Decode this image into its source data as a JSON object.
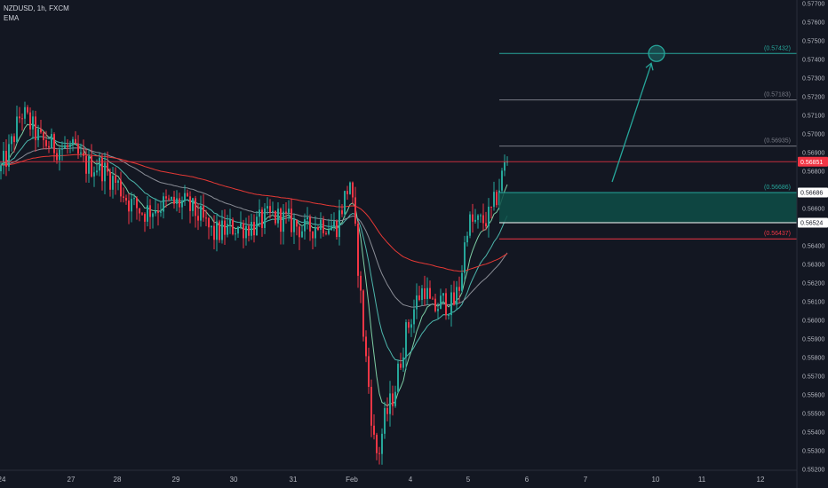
{
  "header": {
    "symbol_line": "NZDUSD, 1h, FXCM",
    "indicator_label": "EMA"
  },
  "chart_data": {
    "type": "candlestick",
    "symbol": "NZDUSD",
    "timeframe": "1h",
    "source": "FXCM",
    "ylim": [
      0.552,
      0.577
    ],
    "y_ticks": [
      0.552,
      0.553,
      0.554,
      0.555,
      0.556,
      0.557,
      0.558,
      0.559,
      0.56,
      0.561,
      0.562,
      0.563,
      0.564,
      0.565,
      0.566,
      0.567,
      0.568,
      0.569,
      0.57,
      0.571,
      0.572,
      0.573,
      0.574,
      0.575,
      0.576,
      0.577
    ],
    "x_tick_labels": [
      "24",
      "27",
      "28",
      "29",
      "30",
      "31",
      "Feb",
      "4",
      "5",
      "6",
      "7",
      "10",
      "11",
      "12"
    ],
    "current_price": "0.56851",
    "price_levels": [
      {
        "value": 0.57432,
        "label": "(0.57432)",
        "color": "#26a69a"
      },
      {
        "value": 0.57183,
        "label": "(0.57183)",
        "color": "#787b86"
      },
      {
        "value": 0.56935,
        "label": "(0.56935)",
        "color": "#787b86"
      },
      {
        "value": 0.56851,
        "label": "0.56851",
        "color": "#f23645"
      },
      {
        "value": 0.56686,
        "label": "(0.56686)",
        "color": "#26a69a"
      },
      {
        "value": 0.56437,
        "label": "(0.56437)",
        "color": "#f23645"
      }
    ],
    "zone": {
      "top": 0.56686,
      "bottom": 0.56524,
      "top_label": "0.56686",
      "bottom_label": "0.56524"
    },
    "target_marker": {
      "value": 0.57432
    },
    "ema_count": 4,
    "colors": {
      "up": "#26a69a",
      "down": "#f23645",
      "zone": "#0e4d47",
      "ema_red": "#e53935",
      "ema_green": "#7ecfa5",
      "ema_teal": "#4db6ac",
      "ema_gray": "#8a8d96"
    },
    "grid": false,
    "legend": "none"
  }
}
